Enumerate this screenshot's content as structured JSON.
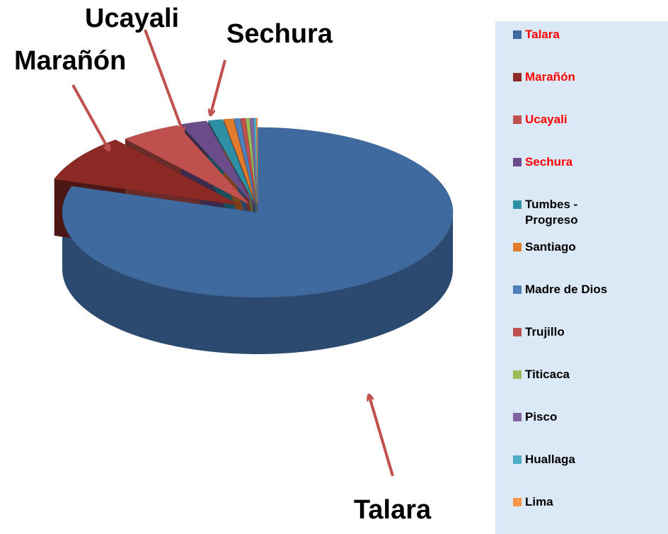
{
  "chart_data": {
    "type": "pie3d",
    "categories": [
      "Talara",
      "Marañón",
      "Ucayali",
      "Sechura",
      "Tumbes - Progreso",
      "Santiago",
      "Madre de Dios",
      "Trujillo",
      "Titicaca",
      "Pisco",
      "Huallaga",
      "Lima"
    ],
    "values": [
      80,
      9,
      5,
      2.2,
      1.2,
      0.8,
      0.5,
      0.4,
      0.3,
      0.3,
      0.2,
      0.1
    ],
    "colors": [
      "#3f6aa0",
      "#8b2a25",
      "#c0504d",
      "#6a4c8a",
      "#2f8fa5",
      "#e07b2b",
      "#4f81bd",
      "#c0504d",
      "#9bbb59",
      "#8064a2",
      "#4bacc6",
      "#f79646"
    ],
    "label_colors": [
      "#ff0000",
      "#ff0000",
      "#ff0000",
      "#ff0000",
      "#000000",
      "#000000",
      "#000000",
      "#000000",
      "#000000",
      "#000000",
      "#000000",
      "#000000"
    ],
    "annotations": [
      "Ucayali",
      "Marañón",
      "Sechura",
      "Talara"
    ],
    "legend": "right"
  }
}
